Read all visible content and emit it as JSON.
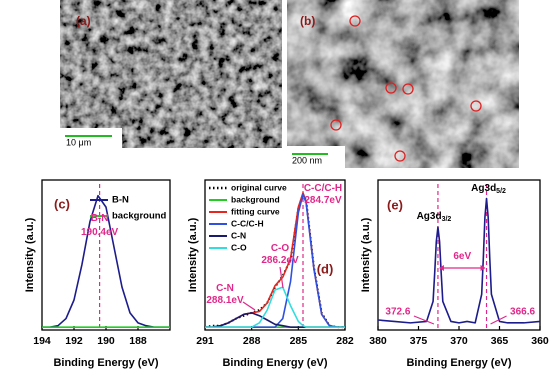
{
  "panels": [
    {
      "label": "(a)",
      "scale_bar": "10 μm"
    },
    {
      "label": "(b)",
      "scale_bar": "200 nm"
    }
  ],
  "chart_data": [
    {
      "type": "line",
      "label": "(c)",
      "xlabel": "Binding Energy (eV)",
      "ylabel": "Intensity (a.u.)",
      "xlim": [
        194,
        186
      ],
      "xticks": [
        194,
        192,
        190,
        188
      ],
      "ylim": [
        0,
        1.05
      ],
      "legend": "upper right",
      "series": [
        {
          "name": "B-N",
          "color": "#1c1c8c",
          "style": "solid",
          "x": [
            194,
            193.5,
            193,
            192.5,
            192,
            191.5,
            191,
            190.5,
            190,
            189.5,
            189,
            188.5,
            188,
            187.5,
            187,
            186.5,
            186
          ],
          "values": [
            0.02,
            0.02,
            0.03,
            0.08,
            0.21,
            0.46,
            0.76,
            0.94,
            0.86,
            0.58,
            0.3,
            0.12,
            0.05,
            0.03,
            0.02,
            0.02,
            0.02
          ]
        },
        {
          "name": "background",
          "color": "#22cc22",
          "style": "solid",
          "x": [
            194,
            186
          ],
          "values": [
            0.02,
            0.02
          ]
        }
      ],
      "vlines": [
        190.4
      ],
      "annotation_color": "#e0288a",
      "annotations": [
        {
          "text": "B-N"
        },
        {
          "text": "190.4eV"
        }
      ]
    },
    {
      "type": "line",
      "label": "(d)",
      "xlabel": "Binding Energy (eV)",
      "ylabel": "Intensity (a.u.)",
      "xlim": [
        291,
        282
      ],
      "xticks": [
        291,
        288,
        285,
        282
      ],
      "ylim": [
        0,
        1.05
      ],
      "legend": "upper left",
      "series": [
        {
          "name": "original curve",
          "color": "#000000",
          "style": "dotted",
          "x": [
            291,
            290.5,
            290,
            289.5,
            289,
            288.5,
            288,
            287.5,
            287,
            286.5,
            286,
            285.5,
            285,
            284.7,
            284.5,
            284,
            283.5,
            283,
            282.5,
            282
          ],
          "values": [
            0.02,
            0.03,
            0.03,
            0.05,
            0.08,
            0.1,
            0.12,
            0.14,
            0.19,
            0.3,
            0.38,
            0.49,
            0.85,
            0.95,
            0.91,
            0.44,
            0.12,
            0.03,
            0.02,
            0.02
          ]
        },
        {
          "name": "background",
          "color": "#22cc22",
          "style": "solid",
          "x": [
            291,
            282
          ],
          "values": [
            0.02,
            0.02
          ]
        },
        {
          "name": "fitting curve",
          "color": "#e8261f",
          "style": "solid",
          "x": [
            291,
            290.5,
            290,
            289.5,
            289,
            288.5,
            288,
            287.5,
            287,
            286.5,
            286,
            285.5,
            285,
            284.7,
            284.5,
            284,
            283.5,
            283,
            282.5,
            282
          ],
          "values": [
            0.02,
            0.02,
            0.03,
            0.05,
            0.08,
            0.11,
            0.12,
            0.13,
            0.19,
            0.31,
            0.37,
            0.5,
            0.86,
            0.96,
            0.9,
            0.43,
            0.11,
            0.03,
            0.02,
            0.02
          ]
        },
        {
          "name": "C-C/C-H",
          "color": "#3050e0",
          "style": "solid",
          "x": [
            291,
            290.5,
            290,
            289.5,
            289,
            288.5,
            288,
            287.5,
            287,
            286.5,
            286,
            285.5,
            285,
            284.7,
            284.5,
            284,
            283.5,
            283,
            282.5,
            282
          ],
          "values": [
            0.02,
            0.02,
            0.02,
            0.02,
            0.02,
            0.02,
            0.02,
            0.02,
            0.02,
            0.02,
            0.08,
            0.34,
            0.82,
            0.95,
            0.89,
            0.43,
            0.11,
            0.03,
            0.02,
            0.02
          ]
        },
        {
          "name": "C-N",
          "color": "#1a1a6e",
          "style": "solid",
          "x": [
            291,
            290.5,
            290,
            289.5,
            289,
            288.5,
            288,
            287.5,
            287,
            286.5,
            286,
            285.5,
            285,
            284.7,
            284.5,
            284,
            283.5,
            283,
            282.5,
            282
          ],
          "values": [
            0.02,
            0.02,
            0.03,
            0.05,
            0.08,
            0.11,
            0.12,
            0.1,
            0.07,
            0.04,
            0.03,
            0.02,
            0.02,
            0.02,
            0.02,
            0.02,
            0.02,
            0.02,
            0.02,
            0.02
          ]
        },
        {
          "name": "C-O",
          "color": "#33dddd",
          "style": "solid",
          "x": [
            291,
            290.5,
            290,
            289.5,
            289,
            288.5,
            288,
            287.5,
            287,
            286.5,
            286,
            285.5,
            285,
            284.7,
            284.5,
            284,
            283.5,
            283,
            282.5,
            282
          ],
          "values": [
            0.02,
            0.02,
            0.02,
            0.02,
            0.02,
            0.02,
            0.02,
            0.05,
            0.14,
            0.28,
            0.3,
            0.17,
            0.06,
            0.03,
            0.02,
            0.02,
            0.02,
            0.02,
            0.02,
            0.02
          ]
        }
      ],
      "vlines": [
        284.7
      ],
      "annotation_color": "#e0288a",
      "annotations": [
        {
          "text": "C-C/C-H"
        },
        {
          "text": "284.7eV"
        },
        {
          "text": "C-O"
        },
        {
          "text": "286.2eV"
        },
        {
          "text": "C-N"
        },
        {
          "text": "288.1eV"
        }
      ]
    },
    {
      "type": "line",
      "label": "(e)",
      "xlabel": "Binding Energy (eV)",
      "ylabel": "Intensity (a.u.)",
      "xlim": [
        380,
        360
      ],
      "xticks": [
        380,
        375,
        370,
        365,
        360
      ],
      "ylim": [
        0,
        1.05
      ],
      "series": [
        {
          "color": "#1c1c8c",
          "style": "solid",
          "x": [
            380,
            378,
            376,
            374,
            373.2,
            373,
            372.8,
            372.6,
            372.4,
            372.2,
            372,
            371,
            370,
            369,
            368,
            367.2,
            367,
            366.8,
            366.6,
            366.4,
            366.2,
            366,
            365,
            364,
            362,
            360
          ],
          "values": [
            0.07,
            0.06,
            0.05,
            0.06,
            0.2,
            0.4,
            0.62,
            0.72,
            0.62,
            0.4,
            0.2,
            0.06,
            0.05,
            0.06,
            0.05,
            0.25,
            0.5,
            0.79,
            0.92,
            0.79,
            0.5,
            0.25,
            0.06,
            0.05,
            0.05,
            0.06
          ]
        }
      ],
      "vlines": [
        372.6,
        366.6
      ],
      "annotation_color": "#e0288a",
      "annotations": [
        {
          "text": "Ag3d",
          "sub": "3/2"
        },
        {
          "text": "Ag3d",
          "sub": "5/2"
        },
        {
          "text": "6eV"
        }
      ]
    }
  ]
}
